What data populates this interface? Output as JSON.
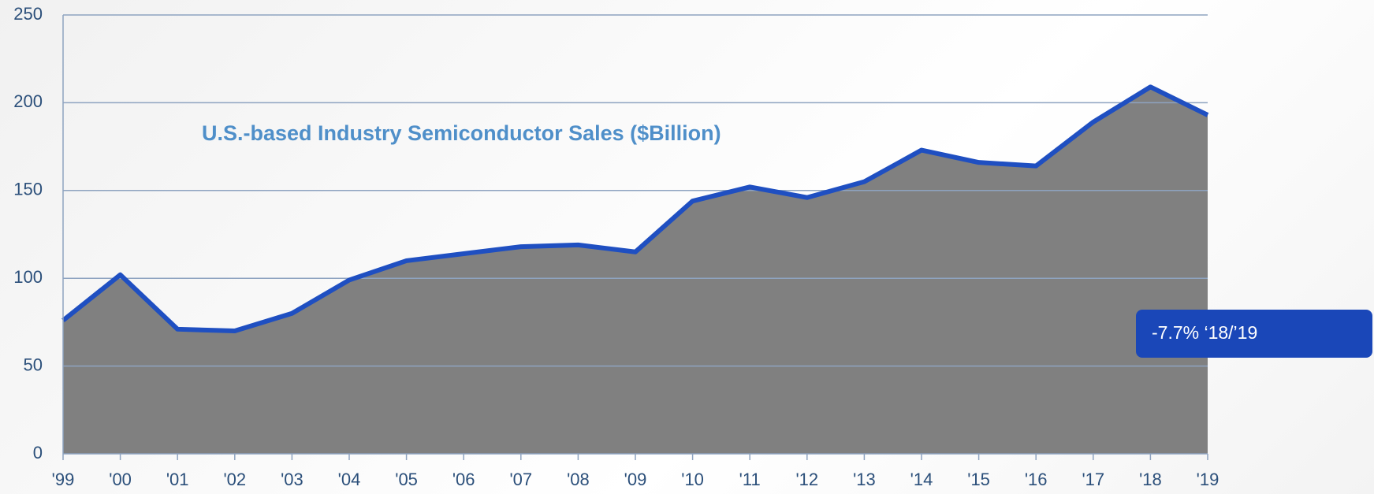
{
  "chart_data": {
    "type": "area",
    "title": "U.S.-based Industry Semiconductor Sales ($Billion)",
    "annotation": "-7.7% ‘18/’19",
    "categories": [
      "'99",
      "'00",
      "'01",
      "'02",
      "'03",
      "'04",
      "'05",
      "'06",
      "'07",
      "'08",
      "'09",
      "'10",
      "'11",
      "'12",
      "'13",
      "'14",
      "'15",
      "'16",
      "'17",
      "'18",
      "'19"
    ],
    "values": [
      76,
      102,
      71,
      70,
      80,
      99,
      110,
      114,
      118,
      119,
      115,
      144,
      152,
      146,
      155,
      173,
      166,
      164,
      189,
      209,
      193
    ],
    "color": "#808080",
    "line_color": "#1f4fc1",
    "ylim": [
      0,
      250
    ],
    "yticks": [
      0,
      50,
      100,
      150,
      200,
      250
    ],
    "grid": true
  }
}
